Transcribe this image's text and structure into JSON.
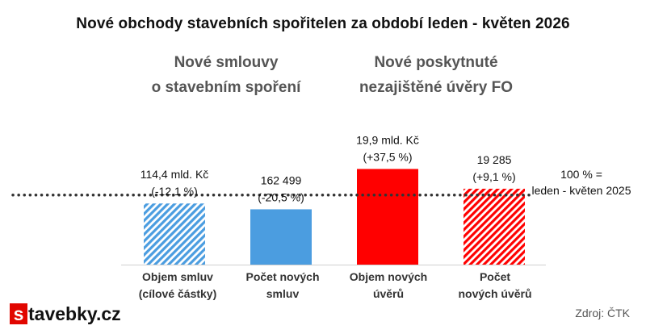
{
  "title": "Nové obchody stavebních spořitelen za období leden - květen 2026",
  "sections": [
    {
      "lines": [
        "Nové smlouvy",
        "o stavebním spoření"
      ]
    },
    {
      "lines": [
        "Nové poskytnuté",
        "nezajištěné úvěry FO"
      ]
    }
  ],
  "reference": {
    "lines": [
      "100 % =",
      "leden - květen 2025"
    ]
  },
  "logo": {
    "first_letter": "s",
    "rest": "tavebky.cz"
  },
  "source": "Zdroj: ČTK",
  "colors": {
    "blue": "#4b9de0",
    "red": "#ff0000",
    "reference_line": "#333333",
    "section_heading": "#555555"
  },
  "chart_data": {
    "type": "bar",
    "categories": [
      [
        "Objem smluv",
        "(cílové částky)"
      ],
      [
        "Počet  nových",
        "smluv"
      ],
      [
        "Objem nových",
        "úvěrů"
      ],
      [
        "Počet",
        "nových úvěrů"
      ]
    ],
    "values_pct_of_2025": [
      87.9,
      79.5,
      137.5,
      109.1
    ],
    "reference_value": 100,
    "ylim": [
      0,
      160
    ],
    "data_labels": [
      [
        "114,4 mld. Kč",
        "(-12,1 %)"
      ],
      [
        "162 499",
        "(-20,5 %)"
      ],
      [
        "19,9 mld. Kč",
        "(+37,5 %)"
      ],
      [
        "19 285",
        "(+9,1 %)"
      ]
    ],
    "bar_colors": [
      "blue",
      "blue",
      "red",
      "red"
    ],
    "bar_hatched": [
      true,
      false,
      false,
      true
    ]
  }
}
